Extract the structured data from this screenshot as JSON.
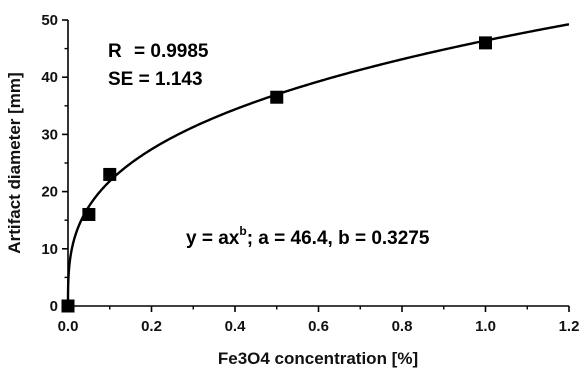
{
  "chart_data": {
    "type": "scatter",
    "xlabel": "Fe3O4 concentration [%]",
    "ylabel": "Artifact diameter [mm]",
    "xlim": [
      0,
      1.2
    ],
    "ylim": [
      0,
      50
    ],
    "xticks": [
      "0.0",
      "0.2",
      "0.4",
      "0.6",
      "0.8",
      "1.0",
      "1.2"
    ],
    "yticks": [
      "0",
      "10",
      "20",
      "30",
      "40",
      "50"
    ],
    "grid": false,
    "legend": "none",
    "series": [
      {
        "x": [
          0.0,
          0.05,
          0.1,
          0.5,
          1.0
        ],
        "y": [
          0,
          16,
          23,
          36.5,
          46
        ],
        "marker": "square",
        "color": "#000000"
      }
    ],
    "fit": {
      "model": "power",
      "a": 46.4,
      "b": 0.3275,
      "color": "#000000"
    },
    "annotations": {
      "r_label": "R",
      "r_value": "= 0.9985",
      "se_text": "SE = 1.143",
      "eq_lhs": "y = ax",
      "eq_exp": "b",
      "eq_rhs": ";  a = 46.4, b = 0.3275"
    }
  }
}
